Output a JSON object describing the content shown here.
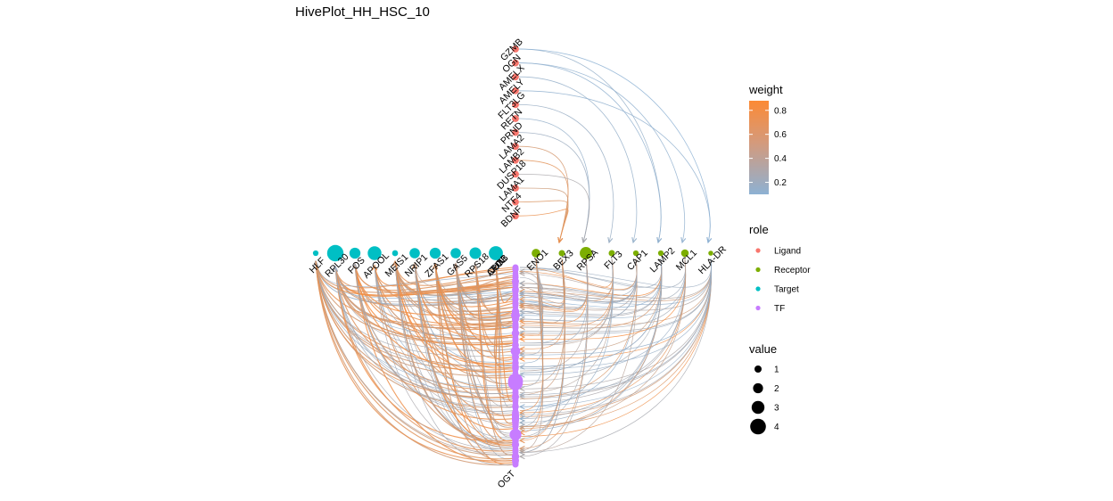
{
  "chart_data": {
    "type": "hive",
    "title": "HivePlot_HH_HSC_10",
    "legends": {
      "weight": {
        "title": "weight",
        "ticks": [
          "0.2",
          "0.4",
          "0.6",
          "0.8"
        ],
        "values": [
          0.2,
          0.4,
          0.6,
          0.8
        ],
        "range": [
          0.1,
          0.88
        ],
        "low_color": "#8db1d3",
        "high_color": "#fc8a35"
      },
      "role": {
        "title": "role",
        "items": [
          {
            "name": "Ligand",
            "color": "#f8766d"
          },
          {
            "name": "Receptor",
            "color": "#7cae00"
          },
          {
            "name": "Target",
            "color": "#00bfc4"
          },
          {
            "name": "TF",
            "color": "#c77cff"
          }
        ]
      },
      "value": {
        "title": "value",
        "items": [
          {
            "label": "1",
            "value": 1
          },
          {
            "label": "2",
            "value": 2
          },
          {
            "label": "3",
            "value": 3
          },
          {
            "label": "4",
            "value": 4
          }
        ]
      }
    },
    "ligands": [
      {
        "name": "GZMB",
        "value": 1
      },
      {
        "name": "OGN",
        "value": 1
      },
      {
        "name": "AMELX",
        "value": 1
      },
      {
        "name": "AMELY",
        "value": 1
      },
      {
        "name": "FLT3LG",
        "value": 1
      },
      {
        "name": "RETN",
        "value": 1
      },
      {
        "name": "PRND",
        "value": 1
      },
      {
        "name": "LAMA2",
        "value": 1
      },
      {
        "name": "LAMB2",
        "value": 1
      },
      {
        "name": "DUSP18",
        "value": 1
      },
      {
        "name": "LAMA1",
        "value": 1
      },
      {
        "name": "NTF4",
        "value": 1
      },
      {
        "name": "BDNF",
        "value": 1
      }
    ],
    "receptors": [
      {
        "name": "ENO1",
        "value": 1.5
      },
      {
        "name": "BEX3",
        "value": 0.8
      },
      {
        "name": "RPSA",
        "value": 2.6
      },
      {
        "name": "FLT3",
        "value": 0.8
      },
      {
        "name": "CAP1",
        "value": 0.6
      },
      {
        "name": "LAMP2",
        "value": 0.6
      },
      {
        "name": "MCL1",
        "value": 1.2
      },
      {
        "name": "HLA-DR",
        "value": 0.4
      }
    ],
    "targets": [
      {
        "name": "HLF",
        "value": 0.6
      },
      {
        "name": "RPL30",
        "value": 3.8
      },
      {
        "name": "FOS",
        "value": 2.2
      },
      {
        "name": "APOOL",
        "value": 3.0
      },
      {
        "name": "MEIS1",
        "value": 0.7
      },
      {
        "name": "NRIP1",
        "value": 2.0
      },
      {
        "name": "ZFAS1",
        "value": 2.2
      },
      {
        "name": "GAS5",
        "value": 2.0
      },
      {
        "name": "RPS18",
        "value": 2.4
      },
      {
        "name": "JUN",
        "value": 3.1
      },
      {
        "name": "CUX1",
        "value": 2.0
      },
      {
        "name": "APOB",
        "value": 0.6
      }
    ],
    "tf_axis_label": "OGT",
    "tf_nodes_count": 100
  }
}
